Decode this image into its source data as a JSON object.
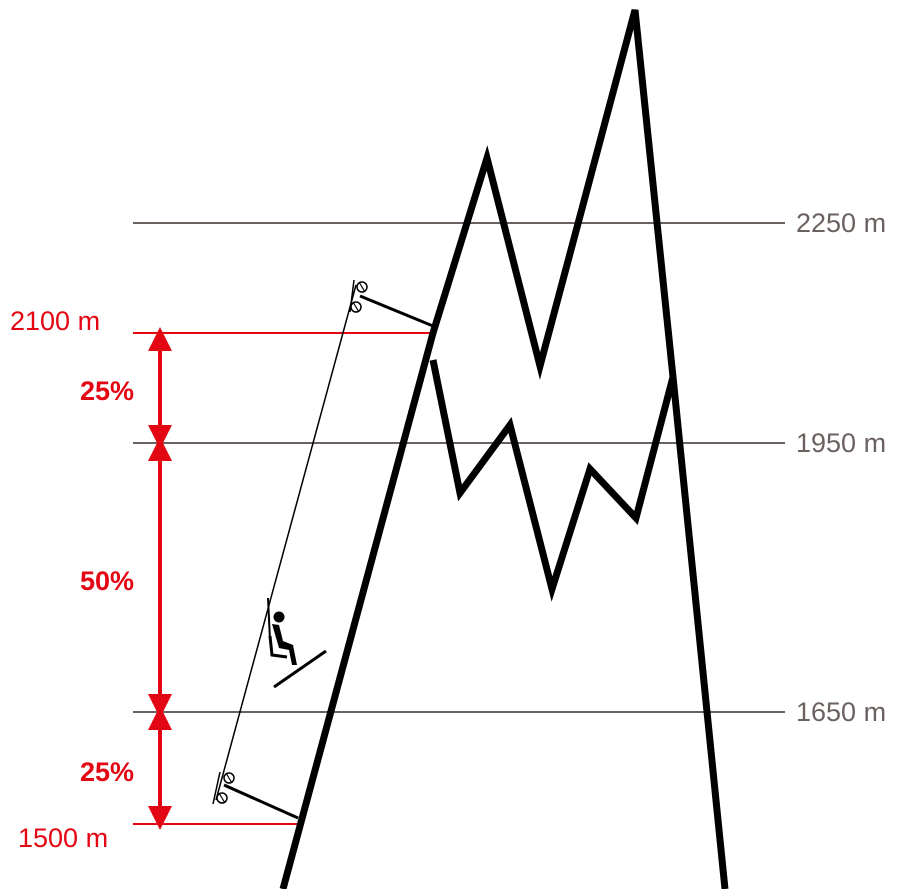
{
  "levels": [
    {
      "label": "2250 m"
    },
    {
      "label": "1950 m"
    },
    {
      "label": "1650 m"
    }
  ],
  "lift": {
    "top_label": "2100 m",
    "bottom_label": "1500 m"
  },
  "segments": [
    {
      "label": "25%"
    },
    {
      "label": "50%"
    },
    {
      "label": "25%"
    }
  ],
  "colors": {
    "accent": "#e30613",
    "level_line": "#6b6260",
    "mountain": "#000000"
  },
  "icons": {
    "chairlift": "chairlift-skier-icon",
    "pulley": "pulley-wheel-icon"
  }
}
